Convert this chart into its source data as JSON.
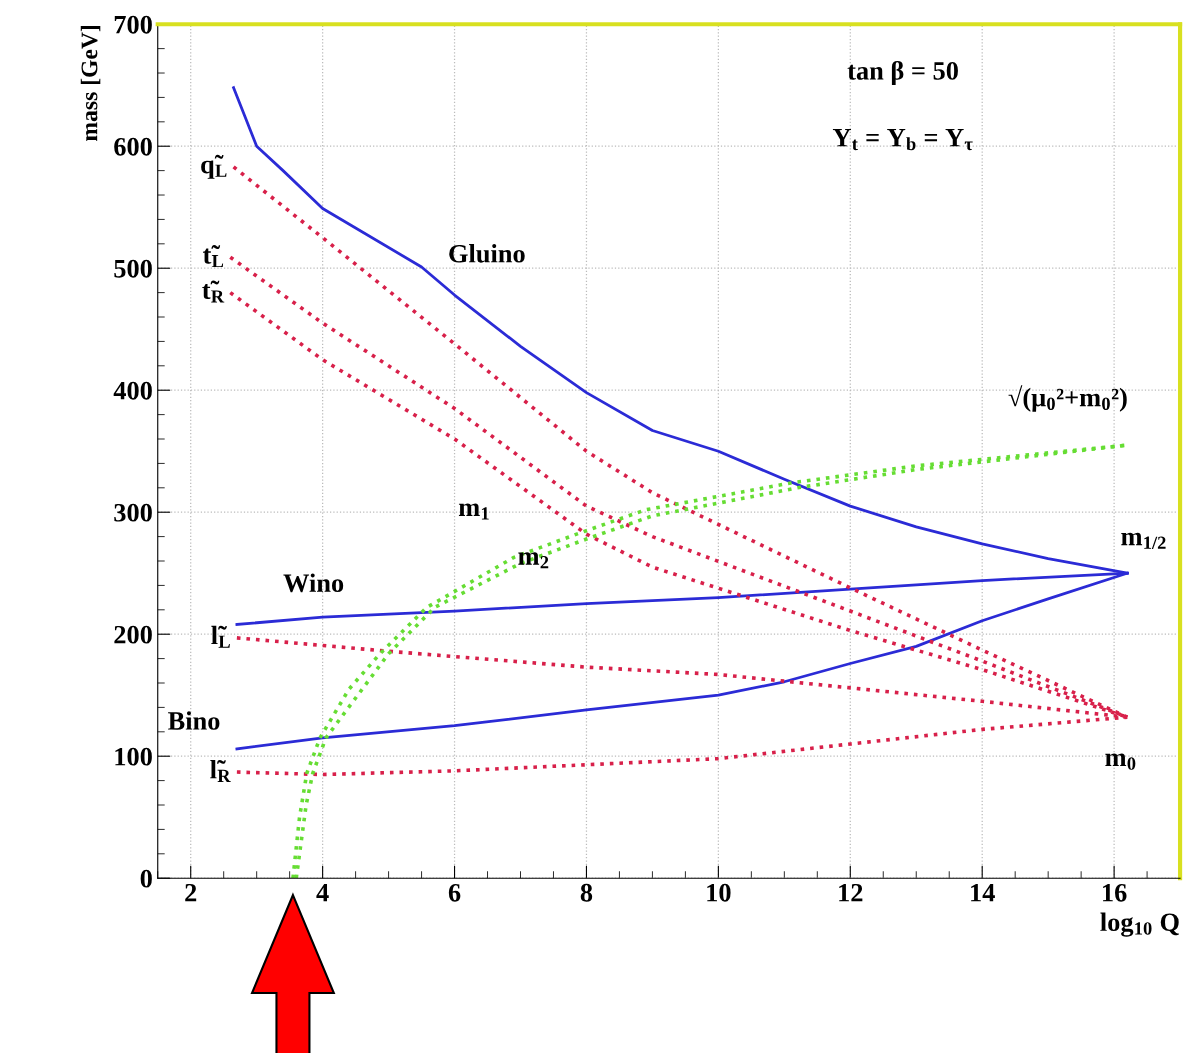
{
  "chart_data": {
    "type": "line",
    "xlabel": "log$_{10}$ Q",
    "ylabel": "mass [GeV]",
    "xlim": [
      1.5,
      17
    ],
    "ylim": [
      0,
      700
    ],
    "xticks": [
      2,
      4,
      6,
      8,
      10,
      12,
      14,
      16
    ],
    "yticks": [
      0,
      100,
      200,
      300,
      400,
      500,
      600,
      700
    ],
    "grid": true,
    "legend": false,
    "marker": "none",
    "series": [
      {
        "name": "Gluino",
        "color": "#2b2bd6",
        "line_style": "solid",
        "x": [
          2.65,
          3.0,
          3.4,
          4.0,
          5.5,
          6,
          7,
          8,
          9,
          10,
          11,
          12,
          13,
          14,
          15,
          16.2
        ],
        "values": [
          648,
          600,
          580,
          549,
          501,
          478,
          436,
          398,
          367,
          350,
          327,
          305,
          288,
          274,
          262,
          250
        ]
      },
      {
        "name": "Wino",
        "color": "#2b2bd6",
        "line_style": "solid",
        "x": [
          2.7,
          4,
          6,
          8,
          10,
          12,
          14,
          16.2
        ],
        "values": [
          208,
          214,
          219,
          225,
          230,
          237,
          244,
          250
        ]
      },
      {
        "name": "Bino",
        "color": "#2b2bd6",
        "line_style": "solid",
        "x": [
          2.7,
          4,
          6,
          8,
          10,
          11,
          12,
          13,
          14,
          15,
          16.2
        ],
        "values": [
          106,
          115,
          125,
          138,
          150,
          161,
          176,
          190,
          211,
          229,
          250
        ]
      },
      {
        "name": "q̃$_{L}$",
        "color": "#d8204a",
        "line_style": "dotted",
        "x": [
          2.65,
          4,
          6,
          8,
          9,
          12,
          14,
          16.2
        ],
        "values": [
          583,
          525,
          438,
          350,
          316,
          238,
          187,
          132
        ]
      },
      {
        "name": "t̃$_{L}$",
        "color": "#d8204a",
        "line_style": "dotted",
        "x": [
          2.6,
          4,
          6,
          8,
          9,
          12,
          14,
          16.2
        ],
        "values": [
          509,
          455,
          385,
          305,
          280,
          219,
          178,
          132
        ]
      },
      {
        "name": "t̃$_{R}$",
        "color": "#d8204a",
        "line_style": "dotted",
        "x": [
          2.6,
          4,
          6,
          8,
          9,
          12,
          14,
          16.2
        ],
        "values": [
          480,
          425,
          360,
          282,
          255,
          203,
          171,
          132
        ]
      },
      {
        "name": "l̃$_{L}$",
        "color": "#d8204a",
        "line_style": "dotted",
        "x": [
          2.7,
          5,
          8,
          10,
          12,
          14,
          16.2
        ],
        "values": [
          197,
          186,
          173,
          167,
          156,
          145,
          132
        ]
      },
      {
        "name": "l̃$_{R}$",
        "color": "#d8204a",
        "line_style": "dotted",
        "x": [
          2.7,
          4,
          6,
          8,
          10,
          12,
          14,
          16.2
        ],
        "values": [
          87,
          85,
          88,
          93,
          98,
          110,
          122,
          132
        ]
      },
      {
        "color": "#66dd33",
        "line_style": "dotted",
        "x": [
          3.55,
          3.65,
          3.76,
          3.96,
          4.4,
          4.87,
          5.58,
          6.9,
          7.9,
          8.9,
          11.1,
          13,
          16.2
        ],
        "values": [
          0,
          50,
          86,
          115,
          155,
          184,
          222,
          263,
          283,
          302,
          324,
          338,
          355
        ]
      },
      {
        "color": "#66dd33",
        "line_style": "dotted",
        "x": [
          3.6,
          3.75,
          3.85,
          4.05,
          5.0,
          5.7,
          7.0,
          8.0,
          9.0,
          11.2,
          13,
          16.2
        ],
        "values": [
          0,
          60,
          86,
          115,
          184,
          222,
          258,
          278,
          297,
          320,
          335,
          355
        ]
      }
    ],
    "annotations": [
      "tan β = 50",
      "Y$_{t}$ = Y$_{b}$ = Y$_{τ}$",
      "√(μ$_{0}$²+m$_{0}$²)",
      "m$_{1/2}$",
      "m$_{0}$",
      "m$_{1}$",
      "m$_{2}$"
    ]
  }
}
